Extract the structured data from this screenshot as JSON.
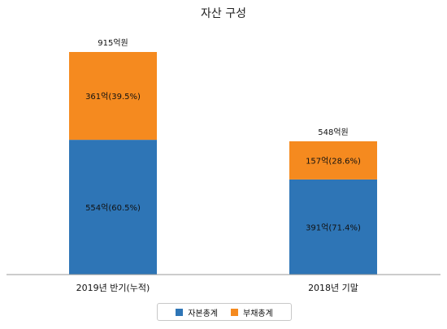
{
  "chart_data": {
    "type": "bar",
    "stacked": true,
    "title": "자산 구성",
    "categories": [
      "2019년 반기(누적)",
      "2018년 기말"
    ],
    "totals_labels": [
      "915억원",
      "548억원"
    ],
    "totals": [
      915,
      548
    ],
    "series": [
      {
        "name": "자본총계",
        "color": "#2e75b6",
        "values": [
          554,
          391
        ],
        "labels": [
          "554억(60.5%)",
          "391억(71.4%)"
        ]
      },
      {
        "name": "부채총계",
        "color": "#f58a1f",
        "values": [
          361,
          157
        ],
        "labels": [
          "361억(39.5%)",
          "157억(28.6%)"
        ]
      }
    ],
    "ylim": [
      0,
      1000
    ],
    "grid": false,
    "legend_position": "bottom"
  }
}
